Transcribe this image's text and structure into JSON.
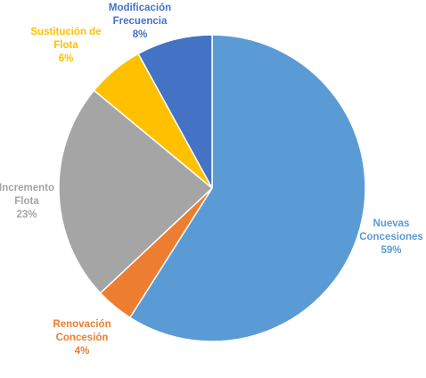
{
  "chart_data": {
    "type": "pie",
    "start_angle_deg": 0,
    "direction": "clockwise",
    "slices": [
      {
        "category": "Nuevas Concesiones",
        "label_lines": [
          "Nuevas",
          "Concesiones"
        ],
        "percent_label": "59%",
        "value": 59,
        "color": "#5B9BD5"
      },
      {
        "category": "Renovación Concesión",
        "label_lines": [
          "Renovación",
          "Concesión"
        ],
        "percent_label": "4%",
        "value": 4,
        "color": "#ED7D31"
      },
      {
        "category": "Incremento Flota",
        "label_lines": [
          "Incremento",
          "Flota"
        ],
        "percent_label": "23%",
        "value": 23,
        "color": "#A5A5A5"
      },
      {
        "category": "Sustitución de Flota",
        "label_lines": [
          "Sustitución de",
          "Flota"
        ],
        "percent_label": "6%",
        "value": 6,
        "color": "#FFC000"
      },
      {
        "category": "Modificación Frecuencia",
        "label_lines": [
          "Modificación",
          "Frecuencia"
        ],
        "percent_label": "8%",
        "value": 8,
        "color": "#4472C4"
      }
    ]
  }
}
